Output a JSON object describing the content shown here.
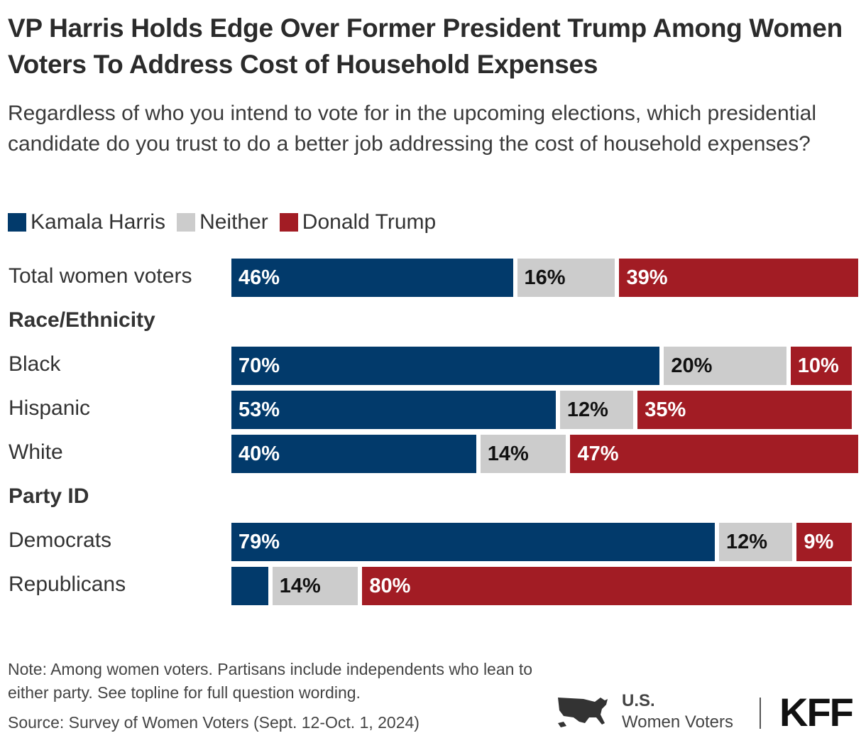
{
  "title": "VP Harris Holds Edge Over Former President Trump Among Women Voters To Address Cost of Household Expenses",
  "subtitle": "Regardless of who you intend to vote for in the upcoming elections, which presidential candidate do you trust to do a better job addressing the cost of household expenses?",
  "chart_data": {
    "type": "bar",
    "orientation": "horizontal",
    "stacked": true,
    "legend_position": "top-left",
    "series": [
      {
        "name": "Kamala Harris",
        "color": "#023a6b"
      },
      {
        "name": "Neither",
        "color": "#cccccc"
      },
      {
        "name": "Donald Trump",
        "color": "#a21c24"
      }
    ],
    "groups": [
      {
        "header": "",
        "rows": [
          {
            "label": "Total women voters",
            "values": [
              46,
              16,
              39
            ],
            "labels": [
              "46%",
              "16%",
              "39%"
            ]
          }
        ]
      },
      {
        "header": "Race/Ethnicity",
        "rows": [
          {
            "label": "Black",
            "values": [
              70,
              20,
              10
            ],
            "labels": [
              "70%",
              "20%",
              "10%"
            ]
          },
          {
            "label": "Hispanic",
            "values": [
              53,
              12,
              35
            ],
            "labels": [
              "53%",
              "12%",
              "35%"
            ]
          },
          {
            "label": "White",
            "values": [
              40,
              14,
              47
            ],
            "labels": [
              "40%",
              "14%",
              "47%"
            ]
          }
        ]
      },
      {
        "header": "Party ID",
        "rows": [
          {
            "label": "Democrats",
            "values": [
              79,
              12,
              9
            ],
            "labels": [
              "79%",
              "12%",
              "9%"
            ]
          },
          {
            "label": "Republicans",
            "values": [
              6,
              14,
              80
            ],
            "labels": [
              "",
              "14%",
              "80%"
            ]
          }
        ]
      }
    ]
  },
  "note": "Note: Among women voters. Partisans include independents who lean to either party. See topline for full question wording.",
  "source": "Source: Survey of Women Voters (Sept. 12-Oct. 1, 2024)",
  "logo": {
    "us_line1": "U.S.",
    "us_line2": "Women Voters",
    "kff": "KFF"
  }
}
